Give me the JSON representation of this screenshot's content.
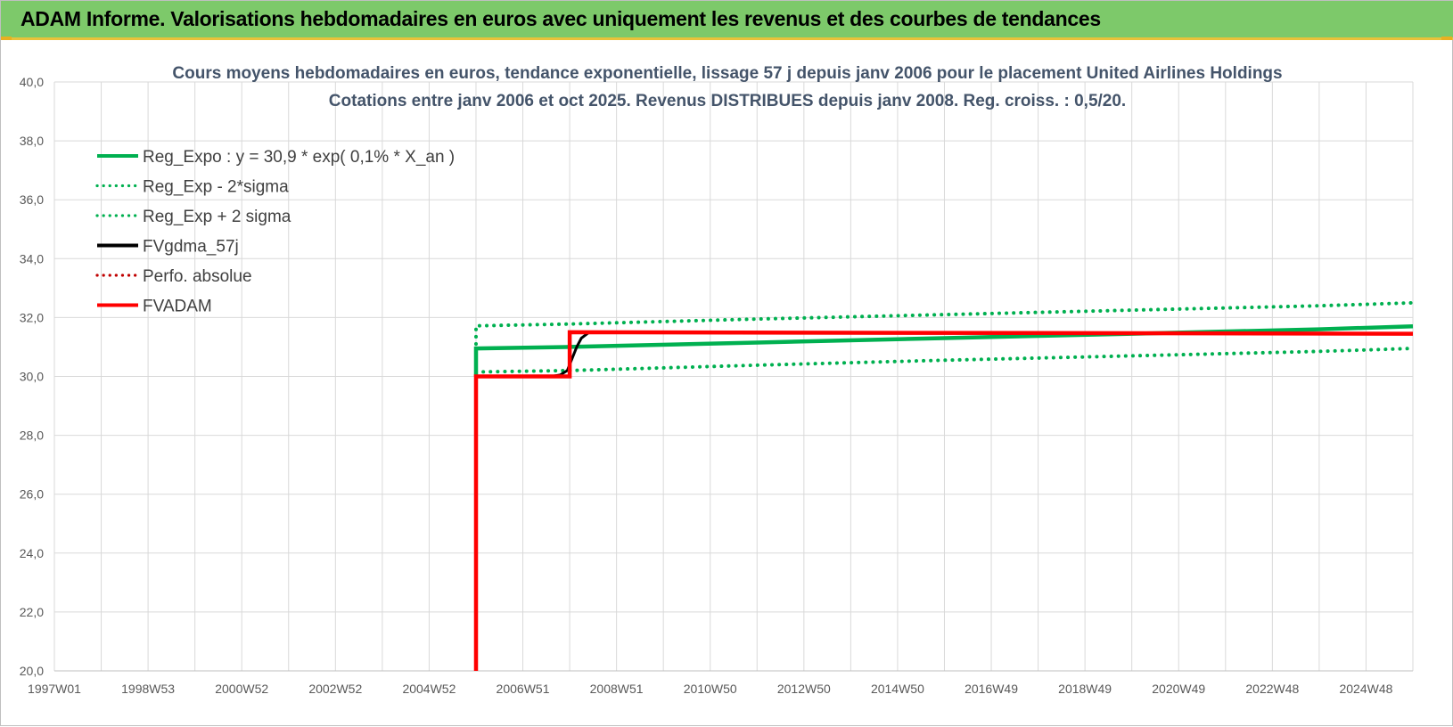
{
  "banner": {
    "title": "ADAM Informe. Valorisations hebdomadaires en euros avec uniquement les revenus et des courbes de tendances"
  },
  "colors": {
    "banner_bg": "#7dc96a",
    "reg_green": "#00b050",
    "fv_red": "#ff0000",
    "perfo_red": "#c00000",
    "gdma_black": "#000000",
    "grid": "#d9d9d9",
    "axis_text": "#595959",
    "title_text": "#44546a"
  },
  "chart_data": {
    "type": "line",
    "title_line1": "Cours moyens hebdomadaires en euros, tendance exponentielle, lissage 57 j depuis janv 2006 pour le placement United Airlines Holdings",
    "title_line2": "Cotations entre janv 2006 et oct 2025. Revenus DISTRIBUES depuis janv 2008. Reg. croiss. : 0,5/20.",
    "ylim": [
      20,
      40
    ],
    "yticks": [
      "20,0",
      "22,0",
      "24,0",
      "26,0",
      "28,0",
      "30,0",
      "32,0",
      "34,0",
      "36,0",
      "38,0",
      "40,0"
    ],
    "xlim": [
      1997.0,
      2026.0
    ],
    "xticks": [
      {
        "label": "1997W01",
        "x": 1997.0
      },
      {
        "label": "1998W53",
        "x": 1999.0
      },
      {
        "label": "2000W52",
        "x": 2001.0
      },
      {
        "label": "2002W52",
        "x": 2003.0
      },
      {
        "label": "2004W52",
        "x": 2005.0
      },
      {
        "label": "2006W51",
        "x": 2007.0
      },
      {
        "label": "2008W51",
        "x": 2009.0
      },
      {
        "label": "2010W50",
        "x": 2011.0
      },
      {
        "label": "2012W50",
        "x": 2013.0
      },
      {
        "label": "2014W50",
        "x": 2015.0
      },
      {
        "label": "2016W49",
        "x": 2017.0
      },
      {
        "label": "2018W49",
        "x": 2019.0
      },
      {
        "label": "2020W49",
        "x": 2021.0
      },
      {
        "label": "2022W48",
        "x": 2023.0
      },
      {
        "label": "2024W48",
        "x": 2025.0
      }
    ],
    "legend_position": "top-left",
    "grid": true,
    "series": [
      {
        "name": "Reg_Expo : y = 30,9 * exp( 0,1% *  X_an )",
        "style": "solid-thick",
        "color": "#00b050",
        "x": [
          2006.0,
          2006.0,
          2008.0,
          2012.0,
          2016.0,
          2020.0,
          2024.0,
          2026.0
        ],
        "y": [
          30.0,
          30.95,
          31.0,
          31.15,
          31.3,
          31.45,
          31.6,
          31.7
        ]
      },
      {
        "name": "Reg_Exp - 2*sigma",
        "style": "dotted",
        "color": "#00b050",
        "x": [
          2006.0,
          2008.0,
          2012.0,
          2016.0,
          2020.0,
          2024.0,
          2026.0
        ],
        "y": [
          30.15,
          30.2,
          30.38,
          30.55,
          30.7,
          30.85,
          30.95
        ]
      },
      {
        "name": "Reg_Exp + 2 sigma",
        "style": "dotted",
        "color": "#00b050",
        "x": [
          2006.0,
          2006.0,
          2008.0,
          2012.0,
          2016.0,
          2020.0,
          2024.0,
          2026.0
        ],
        "y": [
          31.1,
          31.72,
          31.78,
          31.95,
          32.1,
          32.25,
          32.4,
          32.5
        ]
      },
      {
        "name": "FVgdma_57j",
        "style": "solid",
        "color": "#000000",
        "x": [
          2007.6,
          2007.8,
          2007.95,
          2008.05,
          2008.15,
          2008.25,
          2008.4
        ],
        "y": [
          30.0,
          30.05,
          30.2,
          30.6,
          31.0,
          31.3,
          31.48
        ]
      },
      {
        "name": "Perfo. absolue",
        "style": "dotted",
        "color": "#c00000",
        "x": [],
        "y": []
      },
      {
        "name": "FVADAM",
        "style": "solid-thick",
        "color": "#ff0000",
        "x": [
          2006.0,
          2006.0,
          2008.0,
          2008.0,
          2026.0
        ],
        "y": [
          20.0,
          30.0,
          30.0,
          31.5,
          31.45
        ]
      }
    ]
  }
}
